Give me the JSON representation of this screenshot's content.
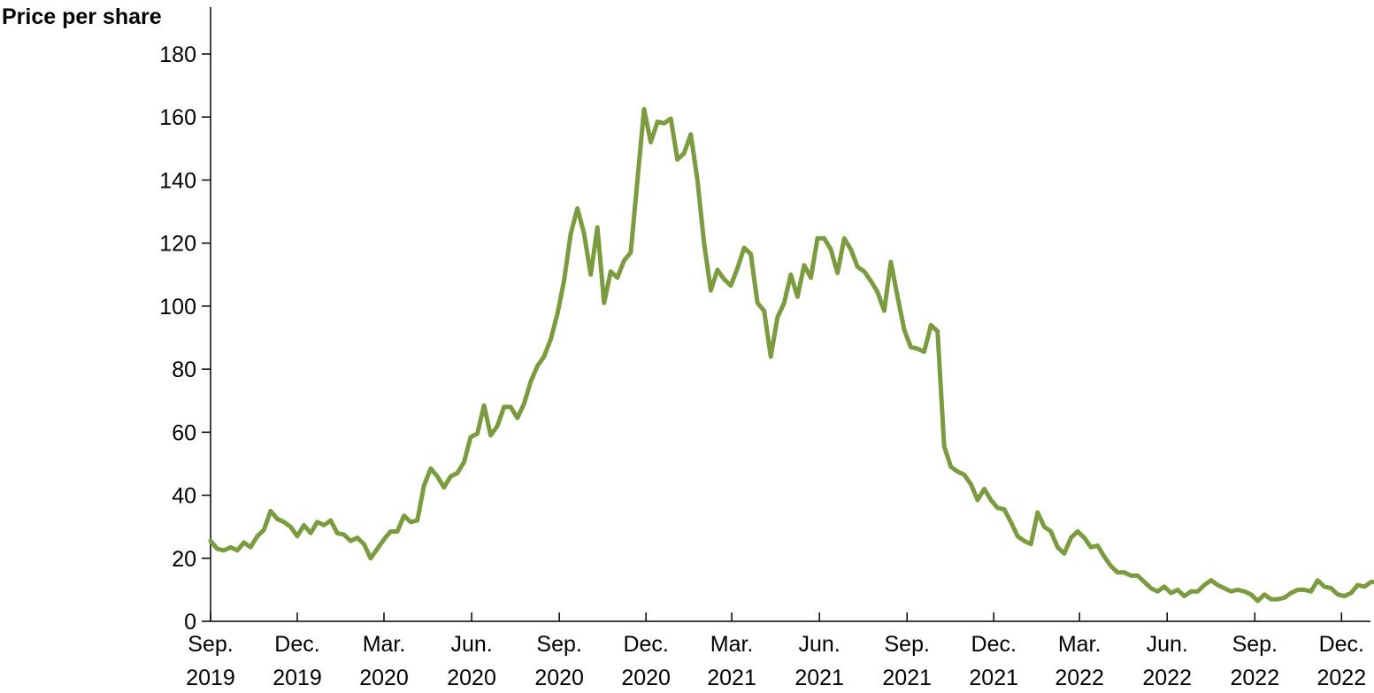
{
  "chart_data": {
    "type": "line",
    "title": "",
    "xlabel": "",
    "ylabel": "Price per share",
    "ylim": [
      0,
      180
    ],
    "yticks": [
      0,
      20,
      40,
      60,
      80,
      100,
      120,
      140,
      160,
      180
    ],
    "xlim": [
      "2019-09",
      "2023-01"
    ],
    "xtick_labels": [
      {
        "month": "Sep.",
        "year": "2019",
        "date": "2019-09"
      },
      {
        "month": "Dec.",
        "year": "2019",
        "date": "2019-12"
      },
      {
        "month": "Mar.",
        "year": "2020",
        "date": "2020-03"
      },
      {
        "month": "Jun.",
        "year": "2020",
        "date": "2020-06"
      },
      {
        "month": "Sep.",
        "year": "2020",
        "date": "2020-09"
      },
      {
        "month": "Dec.",
        "year": "2020",
        "date": "2020-12"
      },
      {
        "month": "Mar.",
        "year": "2021",
        "date": "2021-03"
      },
      {
        "month": "Jun.",
        "year": "2021",
        "date": "2021-06"
      },
      {
        "month": "Sep.",
        "year": "2021",
        "date": "2021-09"
      },
      {
        "month": "Dec.",
        "year": "2021",
        "date": "2021-12"
      },
      {
        "month": "Mar.",
        "year": "2022",
        "date": "2022-03"
      },
      {
        "month": "Jun.",
        "year": "2022",
        "date": "2022-06"
      },
      {
        "month": "Sep.",
        "year": "2022",
        "date": "2022-09"
      },
      {
        "month": "Dec.",
        "year": "2022",
        "date": "2022-12"
      }
    ],
    "grid": false,
    "legend": "none",
    "series": [
      {
        "color": "#7a9c3f",
        "points": [
          [
            "2019-09-01",
            25.5
          ],
          [
            "2019-09-08",
            23
          ],
          [
            "2019-09-15",
            22.5
          ],
          [
            "2019-09-22",
            23.5
          ],
          [
            "2019-09-29",
            22.5
          ],
          [
            "2019-10-06",
            25
          ],
          [
            "2019-10-13",
            23.5
          ],
          [
            "2019-10-20",
            27
          ],
          [
            "2019-10-27",
            29
          ],
          [
            "2019-11-03",
            35
          ],
          [
            "2019-11-10",
            32.5
          ],
          [
            "2019-11-17",
            31.5
          ],
          [
            "2019-11-24",
            30
          ],
          [
            "2019-12-01",
            27
          ],
          [
            "2019-12-08",
            30.5
          ],
          [
            "2019-12-15",
            28
          ],
          [
            "2019-12-22",
            31.5
          ],
          [
            "2019-12-29",
            30.5
          ],
          [
            "2020-01-05",
            32
          ],
          [
            "2020-01-12",
            28
          ],
          [
            "2020-01-19",
            27.5
          ],
          [
            "2020-01-26",
            25.5
          ],
          [
            "2020-02-02",
            26.5
          ],
          [
            "2020-02-09",
            24.5
          ],
          [
            "2020-02-16",
            20
          ],
          [
            "2020-02-23",
            23
          ],
          [
            "2020-03-01",
            26
          ],
          [
            "2020-03-08",
            28.5
          ],
          [
            "2020-03-15",
            28.5
          ],
          [
            "2020-03-22",
            33.5
          ],
          [
            "2020-03-29",
            31.5
          ],
          [
            "2020-04-05",
            32
          ],
          [
            "2020-04-12",
            43
          ],
          [
            "2020-04-19",
            48.5
          ],
          [
            "2020-04-26",
            46
          ],
          [
            "2020-05-03",
            42.5
          ],
          [
            "2020-05-10",
            46
          ],
          [
            "2020-05-17",
            47
          ],
          [
            "2020-05-24",
            50.5
          ],
          [
            "2020-05-31",
            58.5
          ],
          [
            "2020-06-07",
            59.5
          ],
          [
            "2020-06-14",
            68.5
          ],
          [
            "2020-06-21",
            59
          ],
          [
            "2020-06-28",
            62
          ],
          [
            "2020-07-05",
            68
          ],
          [
            "2020-07-12",
            68
          ],
          [
            "2020-07-19",
            64.5
          ],
          [
            "2020-07-26",
            69
          ],
          [
            "2020-08-02",
            76
          ],
          [
            "2020-08-09",
            81
          ],
          [
            "2020-08-16",
            84
          ],
          [
            "2020-08-23",
            89.5
          ],
          [
            "2020-08-30",
            97.5
          ],
          [
            "2020-09-06",
            108
          ],
          [
            "2020-09-13",
            123
          ],
          [
            "2020-09-20",
            131
          ],
          [
            "2020-09-27",
            123
          ],
          [
            "2020-10-04",
            110
          ],
          [
            "2020-10-11",
            125
          ],
          [
            "2020-10-18",
            101
          ],
          [
            "2020-10-25",
            111
          ],
          [
            "2020-11-01",
            109
          ],
          [
            "2020-11-08",
            114.5
          ],
          [
            "2020-11-15",
            117
          ],
          [
            "2020-11-22",
            140
          ],
          [
            "2020-11-29",
            162.5
          ],
          [
            "2020-12-06",
            152
          ],
          [
            "2020-12-13",
            158.5
          ],
          [
            "2020-12-20",
            158
          ],
          [
            "2020-12-27",
            159.5
          ],
          [
            "2021-01-03",
            146.5
          ],
          [
            "2021-01-10",
            148.5
          ],
          [
            "2021-01-17",
            154.5
          ],
          [
            "2021-01-24",
            140
          ],
          [
            "2021-01-31",
            120
          ],
          [
            "2021-02-07",
            105
          ],
          [
            "2021-02-14",
            111.5
          ],
          [
            "2021-02-21",
            108.5
          ],
          [
            "2021-02-28",
            106.5
          ],
          [
            "2021-03-07",
            112
          ],
          [
            "2021-03-14",
            118.5
          ],
          [
            "2021-03-21",
            116.5
          ],
          [
            "2021-03-28",
            101
          ],
          [
            "2021-04-04",
            98.5
          ],
          [
            "2021-04-11",
            84
          ],
          [
            "2021-04-18",
            96.5
          ],
          [
            "2021-04-25",
            101
          ],
          [
            "2021-05-02",
            110
          ],
          [
            "2021-05-09",
            103
          ],
          [
            "2021-05-16",
            113
          ],
          [
            "2021-05-23",
            109
          ],
          [
            "2021-05-30",
            121.5
          ],
          [
            "2021-06-06",
            121.5
          ],
          [
            "2021-06-13",
            118
          ],
          [
            "2021-06-20",
            110.5
          ],
          [
            "2021-06-27",
            121.5
          ],
          [
            "2021-07-04",
            118
          ],
          [
            "2021-07-11",
            112.5
          ],
          [
            "2021-07-18",
            111
          ],
          [
            "2021-07-25",
            108
          ],
          [
            "2021-08-01",
            104.5
          ],
          [
            "2021-08-08",
            98.5
          ],
          [
            "2021-08-15",
            114
          ],
          [
            "2021-08-22",
            103
          ],
          [
            "2021-08-29",
            92.5
          ],
          [
            "2021-09-05",
            87
          ],
          [
            "2021-09-12",
            86.5
          ],
          [
            "2021-09-19",
            85.5
          ],
          [
            "2021-09-26",
            94
          ],
          [
            "2021-10-03",
            92
          ],
          [
            "2021-10-10",
            55.5
          ],
          [
            "2021-10-17",
            49
          ],
          [
            "2021-10-24",
            47.5
          ],
          [
            "2021-10-31",
            46.5
          ],
          [
            "2021-11-07",
            43.5
          ],
          [
            "2021-11-14",
            38.5
          ],
          [
            "2021-11-21",
            42
          ],
          [
            "2021-11-28",
            38.5
          ],
          [
            "2021-12-05",
            36
          ],
          [
            "2021-12-12",
            35.5
          ],
          [
            "2021-12-19",
            31.5
          ],
          [
            "2021-12-26",
            27
          ],
          [
            "2022-01-02",
            25.5
          ],
          [
            "2022-01-09",
            24.5
          ],
          [
            "2022-01-16",
            34.5
          ],
          [
            "2022-01-23",
            30
          ],
          [
            "2022-01-30",
            28.5
          ],
          [
            "2022-02-06",
            23.5
          ],
          [
            "2022-02-13",
            21.5
          ],
          [
            "2022-02-20",
            26.5
          ],
          [
            "2022-02-27",
            28.5
          ],
          [
            "2022-03-06",
            26.5
          ],
          [
            "2022-03-13",
            23.5
          ],
          [
            "2022-03-20",
            24
          ],
          [
            "2022-03-27",
            20.5
          ],
          [
            "2022-04-03",
            17.5
          ],
          [
            "2022-04-10",
            15.5
          ],
          [
            "2022-04-17",
            15.5
          ],
          [
            "2022-04-24",
            14.5
          ],
          [
            "2022-05-01",
            14.5
          ],
          [
            "2022-05-08",
            12.5
          ],
          [
            "2022-05-15",
            10.5
          ],
          [
            "2022-05-22",
            9.5
          ],
          [
            "2022-05-29",
            11
          ],
          [
            "2022-06-05",
            9
          ],
          [
            "2022-06-12",
            10
          ],
          [
            "2022-06-19",
            8
          ],
          [
            "2022-06-26",
            9.5
          ],
          [
            "2022-07-03",
            9.5
          ],
          [
            "2022-07-10",
            11.5
          ],
          [
            "2022-07-17",
            13
          ],
          [
            "2022-07-24",
            11.5
          ],
          [
            "2022-07-31",
            10.5
          ],
          [
            "2022-08-07",
            9.5
          ],
          [
            "2022-08-14",
            10
          ],
          [
            "2022-08-21",
            9.5
          ],
          [
            "2022-08-28",
            8.5
          ],
          [
            "2022-09-04",
            6.5
          ],
          [
            "2022-09-11",
            8.5
          ],
          [
            "2022-09-18",
            7
          ],
          [
            "2022-09-25",
            7
          ],
          [
            "2022-10-02",
            7.5
          ],
          [
            "2022-10-09",
            9
          ],
          [
            "2022-10-16",
            10
          ],
          [
            "2022-10-23",
            10
          ],
          [
            "2022-10-30",
            9.5
          ],
          [
            "2022-11-06",
            13
          ],
          [
            "2022-11-13",
            11
          ],
          [
            "2022-11-20",
            10.5
          ],
          [
            "2022-11-27",
            8.5
          ],
          [
            "2022-12-04",
            8
          ],
          [
            "2022-12-11",
            9
          ],
          [
            "2022-12-18",
            11.5
          ],
          [
            "2022-12-25",
            11
          ],
          [
            "2023-01-01",
            12.5
          ],
          [
            "2023-01-08",
            12.5
          ]
        ]
      }
    ]
  }
}
